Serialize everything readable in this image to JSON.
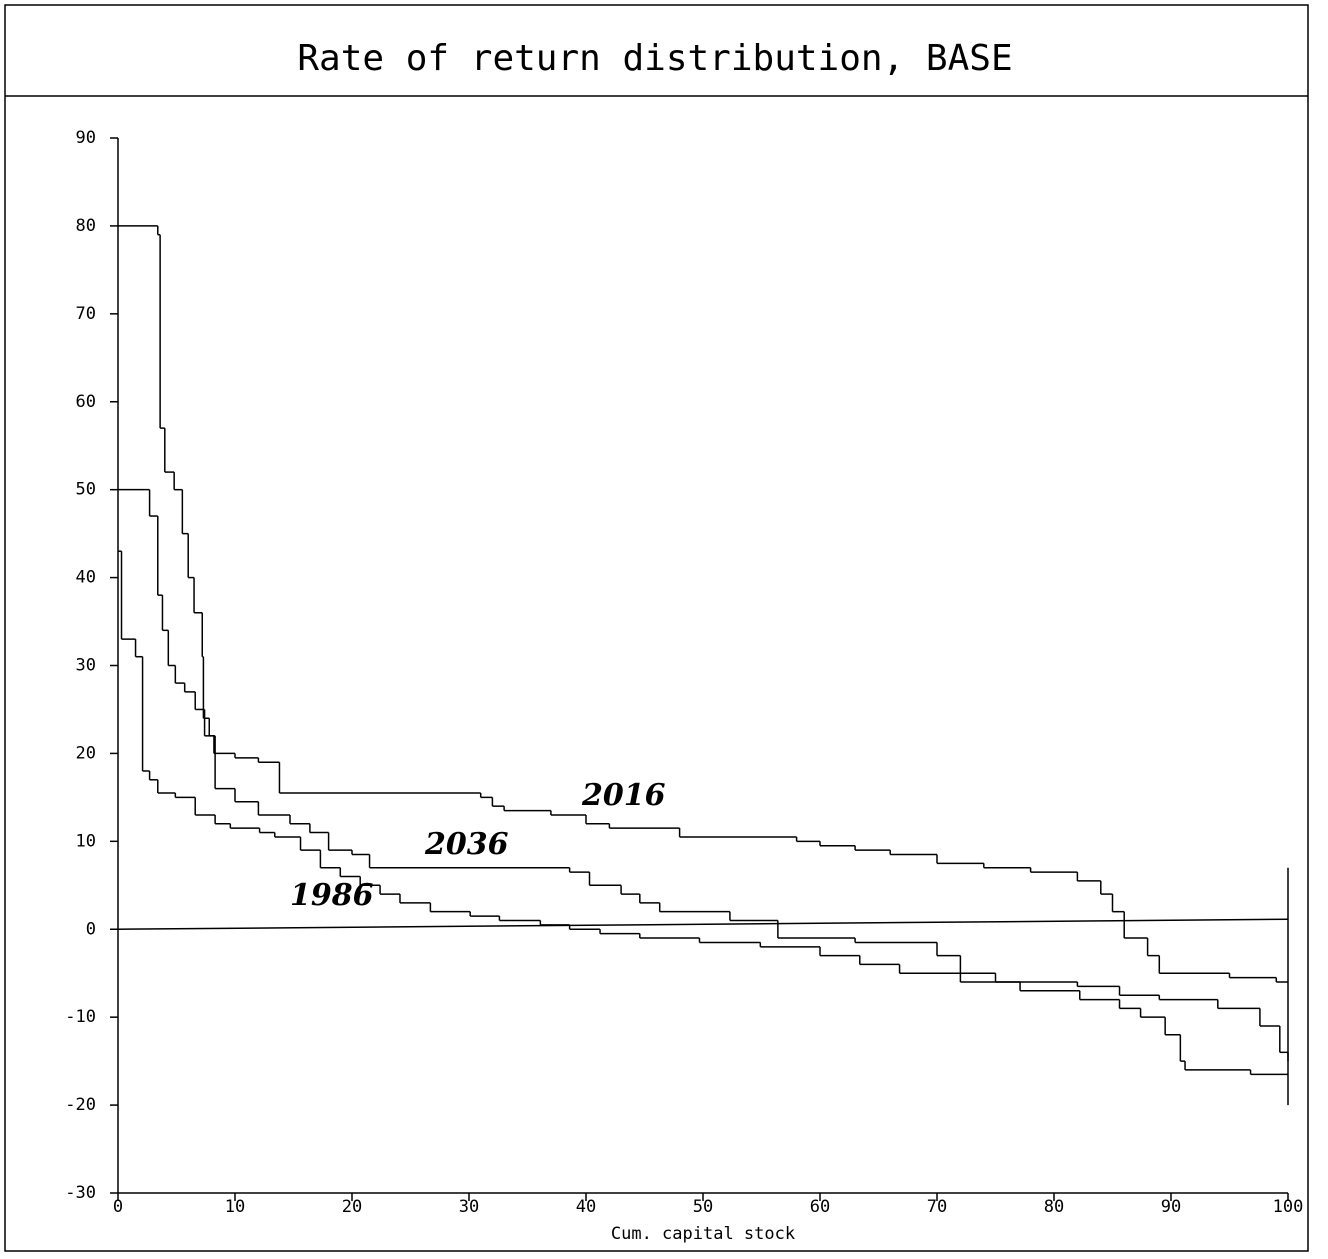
{
  "chart_data": {
    "type": "line",
    "title": "Rate of return distribution, BASE",
    "xlabel": "Cum. capital stock",
    "xlim": [
      0,
      100
    ],
    "ylim": [
      -30,
      90
    ],
    "xticks": [
      0,
      10,
      20,
      30,
      40,
      50,
      60,
      70,
      80,
      90,
      100
    ],
    "yticks": [
      -30,
      -20,
      -10,
      0,
      10,
      20,
      30,
      40,
      50,
      60,
      70,
      80,
      90
    ],
    "step": true,
    "color": "#000000",
    "series": [
      {
        "name": "2016",
        "x": [
          0,
          3.4,
          3.6,
          4,
          4.8,
          5.5,
          6,
          6.5,
          7.2,
          7.3,
          7.8,
          8.2,
          10,
          12,
          13.8,
          31,
          32,
          33,
          37,
          40,
          42,
          48,
          58,
          60,
          63,
          66,
          70,
          74,
          78,
          82,
          84,
          85,
          86,
          88,
          89,
          95,
          99,
          100
        ],
        "values": [
          80,
          79,
          57,
          52,
          50,
          45,
          40,
          36,
          31,
          24,
          22,
          20,
          19.5,
          19,
          15.5,
          15,
          14,
          13.5,
          13,
          12,
          11.5,
          10.5,
          10,
          9.5,
          9,
          8.5,
          7.5,
          7,
          6.5,
          5.5,
          4,
          2,
          -1,
          -3,
          -5,
          -5.5,
          -6,
          -6
        ]
      },
      {
        "name": "2036",
        "x": [
          0,
          2.7,
          3.4,
          3.8,
          4.3,
          4.9,
          5.7,
          6.6,
          7.4,
          8.3,
          10,
          12,
          14.7,
          16.4,
          18,
          20,
          21.5,
          38.6,
          40.3,
          43,
          44.6,
          46.3,
          52.3,
          56.4,
          63,
          70,
          72,
          75,
          82,
          85.6,
          89,
          94,
          97.6,
          99.3,
          100
        ],
        "values": [
          50,
          47,
          38,
          34,
          30,
          28,
          27,
          25,
          22,
          16,
          14.5,
          13,
          12,
          11,
          9,
          8.5,
          7,
          6.5,
          5,
          4,
          3,
          2,
          1,
          -1,
          -1.5,
          -3,
          -5,
          -6,
          -6.5,
          -7.5,
          -8,
          -9,
          -11,
          -14,
          -15
        ]
      },
      {
        "name": "1986",
        "x": [
          0,
          0.3,
          1.5,
          2.1,
          2.7,
          3.4,
          4.9,
          6.6,
          8.3,
          9.6,
          12.1,
          13.4,
          15.6,
          17.3,
          19,
          20.7,
          22.4,
          24.1,
          26.7,
          30.1,
          32.6,
          36.1,
          38.6,
          41.2,
          44.6,
          49.7,
          54.9,
          60,
          63.4,
          66.8,
          72,
          77.1,
          82.2,
          85.6,
          87.4,
          89.5,
          90.8,
          91.2,
          96.8,
          100
        ],
        "values": [
          43,
          33,
          31,
          18,
          17,
          15.5,
          15,
          13,
          12,
          11.5,
          11,
          10.5,
          9,
          7,
          6,
          5,
          4,
          3,
          2,
          1.5,
          1,
          0.5,
          0,
          -0.5,
          -1,
          -1.5,
          -2,
          -3,
          -4,
          -5,
          -6,
          -7,
          -8,
          -9,
          -10,
          -12,
          -15,
          -16,
          -16.5,
          -16.5
        ]
      }
    ]
  }
}
